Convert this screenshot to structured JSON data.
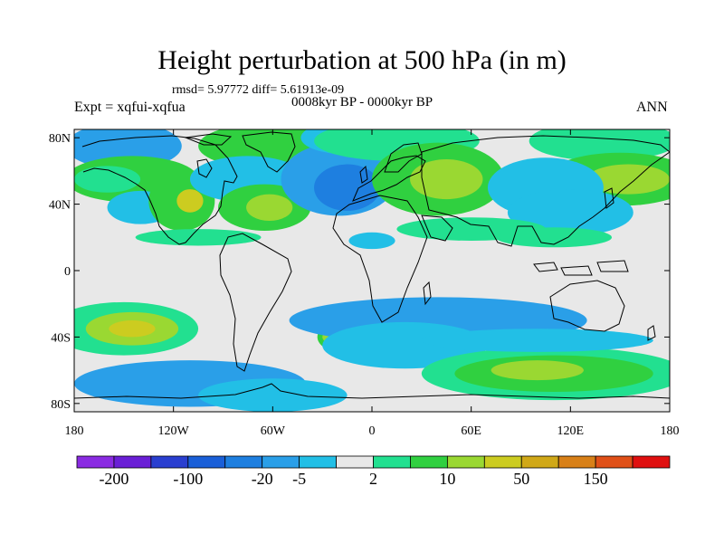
{
  "title": "Height perturbation at 500 hPa (in m)",
  "stats": "rmsd= 5.97772 diff= 5.61913e-09",
  "left_label": "Expt = xqfui-xqfua",
  "center_label": "0008kyr BP - 0000kyr BP",
  "right_label": "ANN",
  "lat_ticks": [
    {
      "label": "80N",
      "lat": 80
    },
    {
      "label": "40N",
      "lat": 40
    },
    {
      "label": "0",
      "lat": 0
    },
    {
      "label": "40S",
      "lat": -40
    },
    {
      "label": "80S",
      "lat": -80
    }
  ],
  "lon_ticks": [
    {
      "label": "180",
      "lon": -180
    },
    {
      "label": "120W",
      "lon": -120
    },
    {
      "label": "60W",
      "lon": -60
    },
    {
      "label": "0",
      "lon": 0
    },
    {
      "label": "60E",
      "lon": 60
    },
    {
      "label": "120E",
      "lon": 120
    },
    {
      "label": "180",
      "lon": 180
    }
  ],
  "colorbar": {
    "colors": [
      "#8a2be2",
      "#6a1fd6",
      "#2a3fd0",
      "#1a5fd8",
      "#1e7fe0",
      "#2a9fe8",
      "#22bfe6",
      "#e8e8e8",
      "#22e090",
      "#30d040",
      "#9ad832",
      "#cccc20",
      "#d0a818",
      "#d88018",
      "#e05018",
      "#e01010"
    ],
    "labels": [
      {
        "text": "-200",
        "boundary": 1
      },
      {
        "text": "-100",
        "boundary": 3
      },
      {
        "text": "-20",
        "boundary": 5
      },
      {
        "text": "-5",
        "boundary": 6
      },
      {
        "text": "2",
        "boundary": 8
      },
      {
        "text": "10",
        "boundary": 10
      },
      {
        "text": "50",
        "boundary": 12
      },
      {
        "text": "150",
        "boundary": 14
      }
    ]
  },
  "field": {
    "background_level": 7,
    "blobs": [
      {
        "lon": -150,
        "lat": 75,
        "level": 5,
        "rx": 35,
        "ry": 14
      },
      {
        "lon": -145,
        "lat": 55,
        "level": 9,
        "rx": 40,
        "ry": 14
      },
      {
        "lon": -160,
        "lat": 55,
        "level": 8,
        "rx": 20,
        "ry": 8
      },
      {
        "lon": -140,
        "lat": 38,
        "level": 6,
        "rx": 20,
        "ry": 10
      },
      {
        "lon": -115,
        "lat": 42,
        "level": 9,
        "rx": 20,
        "ry": 18
      },
      {
        "lon": -110,
        "lat": 42,
        "level": 11,
        "rx": 8,
        "ry": 7
      },
      {
        "lon": -105,
        "lat": 20,
        "level": 8,
        "rx": 38,
        "ry": 5
      },
      {
        "lon": -60,
        "lat": 75,
        "level": 9,
        "rx": 45,
        "ry": 14
      },
      {
        "lon": -75,
        "lat": 55,
        "level": 6,
        "rx": 35,
        "ry": 14
      },
      {
        "lon": -65,
        "lat": 38,
        "level": 9,
        "rx": 28,
        "ry": 14
      },
      {
        "lon": -62,
        "lat": 38,
        "level": 10,
        "rx": 14,
        "ry": 8
      },
      {
        "lon": -20,
        "lat": 55,
        "level": 5,
        "rx": 35,
        "ry": 22
      },
      {
        "lon": -15,
        "lat": 50,
        "level": 4,
        "rx": 20,
        "ry": 14
      },
      {
        "lon": -15,
        "lat": 80,
        "level": 6,
        "rx": 28,
        "ry": 10
      },
      {
        "lon": 15,
        "lat": 78,
        "level": 8,
        "rx": 50,
        "ry": 12
      },
      {
        "lon": 40,
        "lat": 55,
        "level": 9,
        "rx": 40,
        "ry": 22
      },
      {
        "lon": 45,
        "lat": 55,
        "level": 10,
        "rx": 22,
        "ry": 12
      },
      {
        "lon": 140,
        "lat": 78,
        "level": 8,
        "rx": 45,
        "ry": 12
      },
      {
        "lon": 150,
        "lat": 55,
        "level": 9,
        "rx": 45,
        "ry": 16
      },
      {
        "lon": 155,
        "lat": 55,
        "level": 10,
        "rx": 25,
        "ry": 9
      },
      {
        "lon": 105,
        "lat": 50,
        "level": 6,
        "rx": 35,
        "ry": 18
      },
      {
        "lon": 120,
        "lat": 35,
        "level": 6,
        "rx": 38,
        "ry": 14
      },
      {
        "lon": 60,
        "lat": 25,
        "level": 8,
        "rx": 45,
        "ry": 7
      },
      {
        "lon": 110,
        "lat": 20,
        "level": 8,
        "rx": 35,
        "ry": 6
      },
      {
        "lon": 0,
        "lat": 18,
        "level": 6,
        "rx": 14,
        "ry": 5
      },
      {
        "lon": -150,
        "lat": -35,
        "level": 8,
        "rx": 45,
        "ry": 16
      },
      {
        "lon": -145,
        "lat": -35,
        "level": 10,
        "rx": 28,
        "ry": 10
      },
      {
        "lon": -145,
        "lat": -35,
        "level": 11,
        "rx": 14,
        "ry": 5
      },
      {
        "lon": -15,
        "lat": -40,
        "level": 9,
        "rx": 18,
        "ry": 10
      },
      {
        "lon": -20,
        "lat": -40,
        "level": 10,
        "rx": 10,
        "ry": 5
      },
      {
        "lon": -110,
        "lat": -68,
        "level": 5,
        "rx": 70,
        "ry": 14
      },
      {
        "lon": -60,
        "lat": -75,
        "level": 6,
        "rx": 45,
        "ry": 10
      },
      {
        "lon": 40,
        "lat": -30,
        "level": 5,
        "rx": 90,
        "ry": 14
      },
      {
        "lon": 20,
        "lat": -45,
        "level": 6,
        "rx": 50,
        "ry": 14
      },
      {
        "lon": 110,
        "lat": -62,
        "level": 8,
        "rx": 80,
        "ry": 16
      },
      {
        "lon": 110,
        "lat": -62,
        "level": 9,
        "rx": 60,
        "ry": 11
      },
      {
        "lon": 100,
        "lat": -60,
        "level": 10,
        "rx": 28,
        "ry": 6
      },
      {
        "lon": 100,
        "lat": -42,
        "level": 6,
        "rx": 70,
        "ry": 7
      }
    ]
  }
}
